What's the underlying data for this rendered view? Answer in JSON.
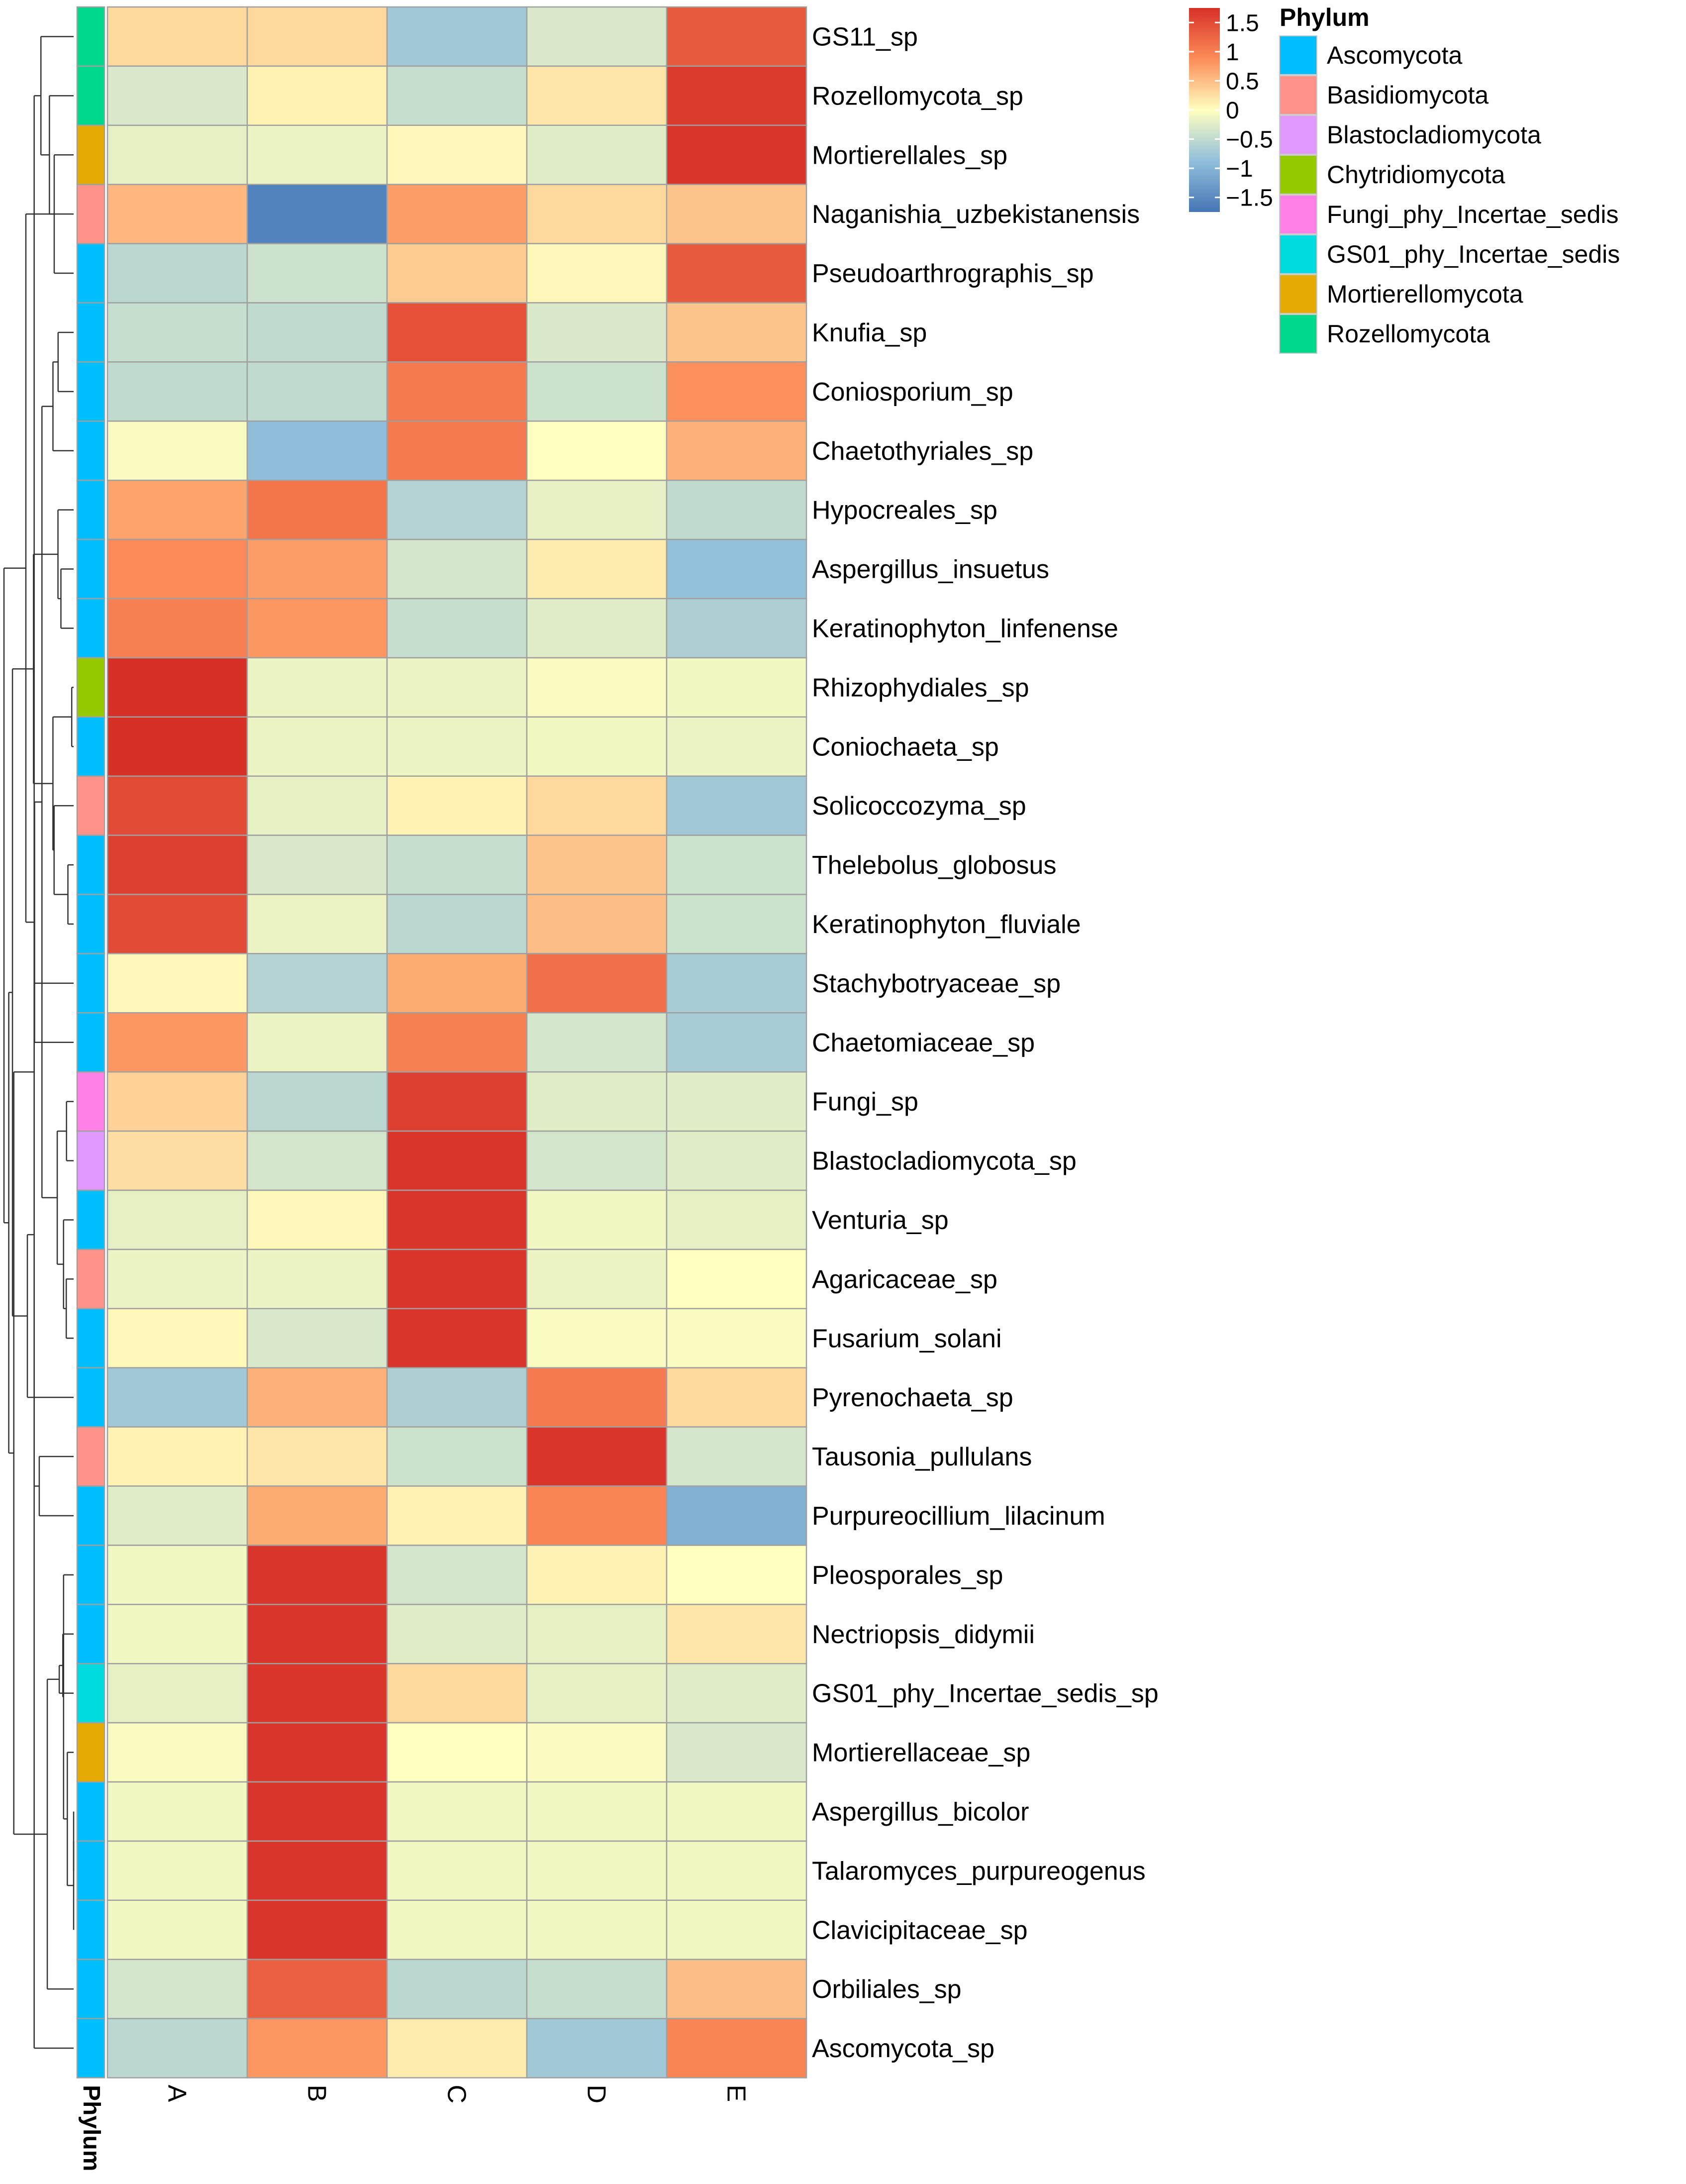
{
  "chart_data": {
    "type": "heatmap",
    "columns": [
      "A",
      "B",
      "C",
      "D",
      "E"
    ],
    "annotation_label": "Phylum",
    "rows": [
      {
        "name": "GS11_sp",
        "phylum": "Rozellomycota",
        "values": [
          0.3,
          0.3,
          -0.75,
          -0.3,
          1.35
        ]
      },
      {
        "name": "Rozellomycota_sp",
        "phylum": "Rozellomycota",
        "values": [
          -0.3,
          0.1,
          -0.45,
          0.2,
          1.65
        ]
      },
      {
        "name": "Mortierellales_sp",
        "phylum": "Mortierellomycota",
        "values": [
          -0.2,
          -0.15,
          0.05,
          -0.25,
          1.7
        ]
      },
      {
        "name": "Naganishia_uzbekistanensis",
        "phylum": "Basidiomycota",
        "values": [
          0.55,
          -1.6,
          0.75,
          0.3,
          0.45
        ]
      },
      {
        "name": "Pseudoarthrographis_sp",
        "phylum": "Ascomycota",
        "values": [
          -0.55,
          -0.4,
          0.4,
          0.05,
          1.35
        ]
      },
      {
        "name": "Knufia_sp",
        "phylum": "Ascomycota",
        "values": [
          -0.45,
          -0.5,
          1.45,
          -0.3,
          0.45
        ]
      },
      {
        "name": "Coniosporium_sp",
        "phylum": "Ascomycota",
        "values": [
          -0.5,
          -0.5,
          1.05,
          -0.4,
          0.85
        ]
      },
      {
        "name": "Chaetothyriales_sp",
        "phylum": "Ascomycota",
        "values": [
          -0.05,
          -0.9,
          1.05,
          0.0,
          0.6
        ]
      },
      {
        "name": "Hypocreales_sp",
        "phylum": "Ascomycota",
        "values": [
          0.7,
          1.1,
          -0.6,
          -0.2,
          -0.5
        ]
      },
      {
        "name": "Aspergillus_insuetus",
        "phylum": "Ascomycota",
        "values": [
          0.9,
          0.75,
          -0.35,
          0.15,
          -0.85
        ]
      },
      {
        "name": "Keratinophyton_linfenense",
        "phylum": "Ascomycota",
        "values": [
          1.0,
          0.8,
          -0.45,
          -0.25,
          -0.65
        ]
      },
      {
        "name": "Rhizophydiales_sp",
        "phylum": "Chytridiomycota",
        "values": [
          1.75,
          -0.15,
          -0.15,
          -0.05,
          -0.1
        ]
      },
      {
        "name": "Coniochaeta_sp",
        "phylum": "Ascomycota",
        "values": [
          1.75,
          -0.15,
          -0.15,
          -0.1,
          -0.15
        ]
      },
      {
        "name": "Solicoccozyma_sp",
        "phylum": "Basidiomycota",
        "values": [
          1.5,
          -0.2,
          0.1,
          0.3,
          -0.75
        ]
      },
      {
        "name": "Thelebolus_globosus",
        "phylum": "Ascomycota",
        "values": [
          1.6,
          -0.3,
          -0.45,
          0.45,
          -0.4
        ]
      },
      {
        "name": "Keratinophyton_fluviale",
        "phylum": "Ascomycota",
        "values": [
          1.5,
          -0.15,
          -0.55,
          0.5,
          -0.4
        ]
      },
      {
        "name": "Stachybotryaceae_sp",
        "phylum": "Ascomycota",
        "values": [
          0.05,
          -0.6,
          0.65,
          1.15,
          -0.7
        ]
      },
      {
        "name": "Chaetomiaceae_sp",
        "phylum": "Ascomycota",
        "values": [
          0.8,
          -0.15,
          1.0,
          -0.35,
          -0.7
        ]
      },
      {
        "name": "Fungi_sp",
        "phylum": "Fungi_phy_Incertae_sedis",
        "values": [
          0.35,
          -0.55,
          1.6,
          -0.25,
          -0.25
        ]
      },
      {
        "name": "Blastocladiomycota_sp",
        "phylum": "Blastocladiomycota",
        "values": [
          0.25,
          -0.35,
          1.7,
          -0.35,
          -0.25
        ]
      },
      {
        "name": "Venturia_sp",
        "phylum": "Ascomycota",
        "values": [
          -0.2,
          0.05,
          1.7,
          -0.1,
          -0.2
        ]
      },
      {
        "name": "Agaricaceae_sp",
        "phylum": "Basidiomycota",
        "values": [
          -0.15,
          -0.15,
          1.7,
          -0.15,
          0.0
        ]
      },
      {
        "name": "Fusarium_solani",
        "phylum": "Ascomycota",
        "values": [
          0.05,
          -0.3,
          1.7,
          -0.05,
          -0.05
        ]
      },
      {
        "name": "Pyrenochaeta_sp",
        "phylum": "Ascomycota",
        "values": [
          -0.75,
          0.6,
          -0.65,
          1.05,
          0.3
        ]
      },
      {
        "name": "Tausonia_pullulans",
        "phylum": "Basidiomycota",
        "values": [
          0.1,
          0.2,
          -0.4,
          1.7,
          -0.35
        ]
      },
      {
        "name": "Purpureocillium_lilacinum",
        "phylum": "Ascomycota",
        "values": [
          -0.25,
          0.65,
          0.1,
          0.95,
          -1.05
        ]
      },
      {
        "name": "Pleosporales_sp",
        "phylum": "Ascomycota",
        "values": [
          -0.1,
          1.7,
          -0.35,
          0.1,
          0.0
        ]
      },
      {
        "name": "Nectriopsis_didymii",
        "phylum": "Ascomycota",
        "values": [
          -0.1,
          1.7,
          -0.25,
          -0.2,
          0.2
        ]
      },
      {
        "name": "GS01_phy_Incertae_sedis_sp",
        "phylum": "GS01_phy_Incertae_sedis",
        "values": [
          -0.2,
          1.7,
          0.3,
          -0.2,
          -0.25
        ]
      },
      {
        "name": "Mortierellaceae_sp",
        "phylum": "Mortierellomycota",
        "values": [
          -0.05,
          1.7,
          0.0,
          -0.05,
          -0.3
        ]
      },
      {
        "name": "Aspergillus_bicolor",
        "phylum": "Ascomycota",
        "values": [
          -0.1,
          1.7,
          -0.1,
          -0.1,
          -0.1
        ]
      },
      {
        "name": "Talaromyces_purpureogenus",
        "phylum": "Ascomycota",
        "values": [
          -0.1,
          1.7,
          -0.1,
          -0.1,
          -0.1
        ]
      },
      {
        "name": "Clavicipitaceae_sp",
        "phylum": "Ascomycota",
        "values": [
          -0.1,
          1.7,
          -0.1,
          -0.1,
          -0.1
        ]
      },
      {
        "name": "Orbiliales_sp",
        "phylum": "Ascomycota",
        "values": [
          -0.35,
          1.3,
          -0.55,
          -0.45,
          0.5
        ]
      },
      {
        "name": "Ascomycota_sp",
        "phylum": "Ascomycota",
        "values": [
          -0.55,
          0.8,
          0.15,
          -0.75,
          0.95
        ]
      }
    ],
    "color_scale": {
      "min": -1.75,
      "max": 1.75,
      "stops": [
        {
          "value": -1.75,
          "color": "#4575B4"
        },
        {
          "value": -0.875,
          "color": "#91BFDB"
        },
        {
          "value": 0,
          "color": "#FFFFBF"
        },
        {
          "value": 0.875,
          "color": "#FC8D59"
        },
        {
          "value": 1.75,
          "color": "#D73027"
        }
      ],
      "ticks": [
        {
          "value": 1.5,
          "label": "1.5"
        },
        {
          "value": 1,
          "label": "1"
        },
        {
          "value": 0.5,
          "label": "0.5"
        },
        {
          "value": 0,
          "label": "0"
        },
        {
          "value": -0.5,
          "label": "−0.5"
        },
        {
          "value": -1,
          "label": "−1"
        },
        {
          "value": -1.5,
          "label": "−1.5"
        }
      ]
    },
    "legend": {
      "title": "Phylum",
      "entries": [
        {
          "label": "Ascomycota",
          "color": "#00BFFF"
        },
        {
          "label": "Basidiomycota",
          "color": "#FF9289"
        },
        {
          "label": "Blastocladiomycota",
          "color": "#E199FF"
        },
        {
          "label": "Chytridiomycota",
          "color": "#96CA00"
        },
        {
          "label": "Fungi_phy_Incertae_sedis",
          "color": "#FF80E6"
        },
        {
          "label": "GS01_phy_Incertae_sedis",
          "color": "#00DBE0"
        },
        {
          "label": "Mortierellomycota",
          "color": "#E6AB02"
        },
        {
          "label": "Rozellomycota",
          "color": "#00D98C"
        }
      ]
    },
    "row_dendrogram": true,
    "cell_border_color": "#A0A0A0"
  }
}
